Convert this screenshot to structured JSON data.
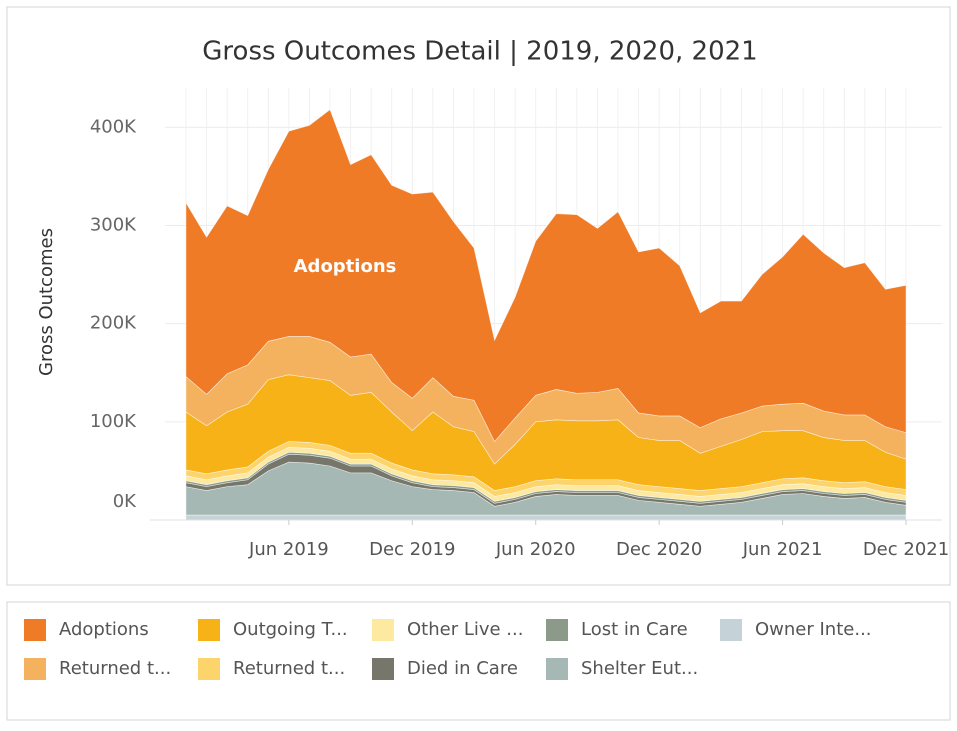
{
  "chart_data": {
    "type": "stacked_area",
    "title": "Gross Outcomes Detail | 2019, 2020, 2021",
    "y_label": "Gross Outcomes",
    "annotation": "Adoptions",
    "x": [
      "2019-01",
      "2019-02",
      "2019-03",
      "2019-04",
      "2019-05",
      "2019-06",
      "2019-07",
      "2019-08",
      "2019-09",
      "2019-10",
      "2019-11",
      "2019-12",
      "2020-01",
      "2020-02",
      "2020-03",
      "2020-04",
      "2020-05",
      "2020-06",
      "2020-07",
      "2020-08",
      "2020-09",
      "2020-10",
      "2020-11",
      "2020-12",
      "2021-01",
      "2021-02",
      "2021-03",
      "2021-04",
      "2021-05",
      "2021-06",
      "2021-07",
      "2021-08",
      "2021-09",
      "2021-10",
      "2021-11",
      "2021-12"
    ],
    "xticks": [
      {
        "value": "2019-06",
        "label": "Jun 2019"
      },
      {
        "value": "2019-12",
        "label": "Dec 2019"
      },
      {
        "value": "2020-06",
        "label": "Jun 2020"
      },
      {
        "value": "2020-12",
        "label": "Dec 2020"
      },
      {
        "value": "2021-06",
        "label": "Jun 2021"
      },
      {
        "value": "2021-12",
        "label": "Dec 2021"
      }
    ],
    "ylim": [
      0,
      440000
    ],
    "yticks": [
      {
        "value": 0,
        "label": "0K"
      },
      {
        "value": 100000,
        "label": "100K"
      },
      {
        "value": 200000,
        "label": "200K"
      },
      {
        "value": 300000,
        "label": "300K"
      },
      {
        "value": 400000,
        "label": "400K"
      }
    ],
    "grid": true,
    "series": [
      {
        "name": "Owner Inte...",
        "color": "#c5d3d8",
        "values": [
          5000,
          5000,
          5000,
          5000,
          5000,
          5000,
          5000,
          5000,
          5000,
          5000,
          5000,
          5000,
          5000,
          5000,
          5000,
          5000,
          5000,
          5000,
          5000,
          5000,
          5000,
          5000,
          5000,
          5000,
          5000,
          5000,
          5000,
          5000,
          5000,
          5000,
          5000,
          5000,
          5000,
          5000,
          5000,
          5000
        ]
      },
      {
        "name": "Shelter Eut...",
        "color": "#a6b8b4",
        "values": [
          29000,
          25000,
          29000,
          31000,
          45000,
          54000,
          53000,
          50000,
          43000,
          43000,
          35000,
          29000,
          26000,
          25000,
          23000,
          9000,
          13000,
          19000,
          21000,
          20000,
          20000,
          20000,
          15000,
          13000,
          11000,
          9000,
          11000,
          13000,
          17000,
          21000,
          22000,
          19000,
          17000,
          18000,
          13000,
          10000
        ]
      },
      {
        "name": "Died in Care",
        "color": "#76766a",
        "values": [
          4000,
          4000,
          4000,
          5000,
          7000,
          8000,
          8000,
          8000,
          7000,
          7000,
          5000,
          4000,
          3000,
          3000,
          3000,
          3000,
          3000,
          3000,
          3000,
          3000,
          3000,
          3000,
          3000,
          3000,
          3000,
          3000,
          3000,
          3000,
          3000,
          3000,
          3000,
          3000,
          3000,
          3000,
          3000,
          3000
        ]
      },
      {
        "name": "Lost in Care",
        "color": "#8c9a8a",
        "values": [
          2000,
          2000,
          2000,
          2000,
          2000,
          2000,
          2000,
          2000,
          2000,
          2000,
          2000,
          2000,
          2000,
          2000,
          2000,
          2000,
          2000,
          2000,
          2000,
          2000,
          2000,
          2000,
          2000,
          2000,
          2000,
          2000,
          2000,
          2000,
          2000,
          2000,
          2000,
          2000,
          2000,
          2000,
          2000,
          2000
        ]
      },
      {
        "name": "Other Live ...",
        "color": "#fde9a0",
        "values": [
          5000,
          5000,
          5000,
          5000,
          5000,
          5000,
          5000,
          5000,
          5000,
          5000,
          5000,
          5000,
          5000,
          5000,
          5000,
          5000,
          5000,
          5000,
          5000,
          5000,
          5000,
          5000,
          5000,
          5000,
          5000,
          5000,
          5000,
          5000,
          5000,
          5000,
          5000,
          5000,
          5000,
          5000,
          5000,
          5000
        ]
      },
      {
        "name": "Returned t...",
        "color": "#fdd36b",
        "values": [
          6000,
          6000,
          6000,
          6000,
          6000,
          6000,
          6000,
          6000,
          6000,
          6000,
          6000,
          6000,
          6000,
          6000,
          6000,
          6000,
          6000,
          6000,
          6000,
          6000,
          6000,
          6000,
          6000,
          6000,
          6000,
          6000,
          6000,
          6000,
          6000,
          6000,
          6000,
          6000,
          6000,
          6000,
          6000,
          6000
        ]
      },
      {
        "name": "Outgoing T...",
        "color": "#f7b217",
        "values": [
          59000,
          49000,
          59000,
          64000,
          73000,
          68000,
          66000,
          66000,
          59000,
          62000,
          52000,
          40000,
          63000,
          49000,
          46000,
          27000,
          43000,
          60000,
          60000,
          60000,
          60000,
          61000,
          48000,
          47000,
          49000,
          38000,
          43000,
          48000,
          52000,
          49000,
          48000,
          44000,
          43000,
          42000,
          35000,
          31000
        ]
      },
      {
        "name": "Returned t...",
        "color": "#f4b25e",
        "values": [
          36000,
          32000,
          39000,
          40000,
          39000,
          39000,
          42000,
          39000,
          39000,
          39000,
          30000,
          33000,
          35000,
          31000,
          32000,
          23000,
          27000,
          27000,
          31000,
          28000,
          29000,
          32000,
          25000,
          25000,
          25000,
          26000,
          28000,
          27000,
          26000,
          27000,
          28000,
          27000,
          26000,
          26000,
          26000,
          27000
        ]
      },
      {
        "name": "Adoptions",
        "color": "#f07b27",
        "values": [
          177000,
          160000,
          171000,
          152000,
          175000,
          209000,
          215000,
          237000,
          196000,
          203000,
          201000,
          208000,
          189000,
          178000,
          155000,
          103000,
          123000,
          157000,
          179000,
          182000,
          167000,
          180000,
          164000,
          171000,
          153000,
          117000,
          120000,
          114000,
          134000,
          150000,
          172000,
          161000,
          150000,
          155000,
          140000,
          150000
        ]
      }
    ]
  }
}
